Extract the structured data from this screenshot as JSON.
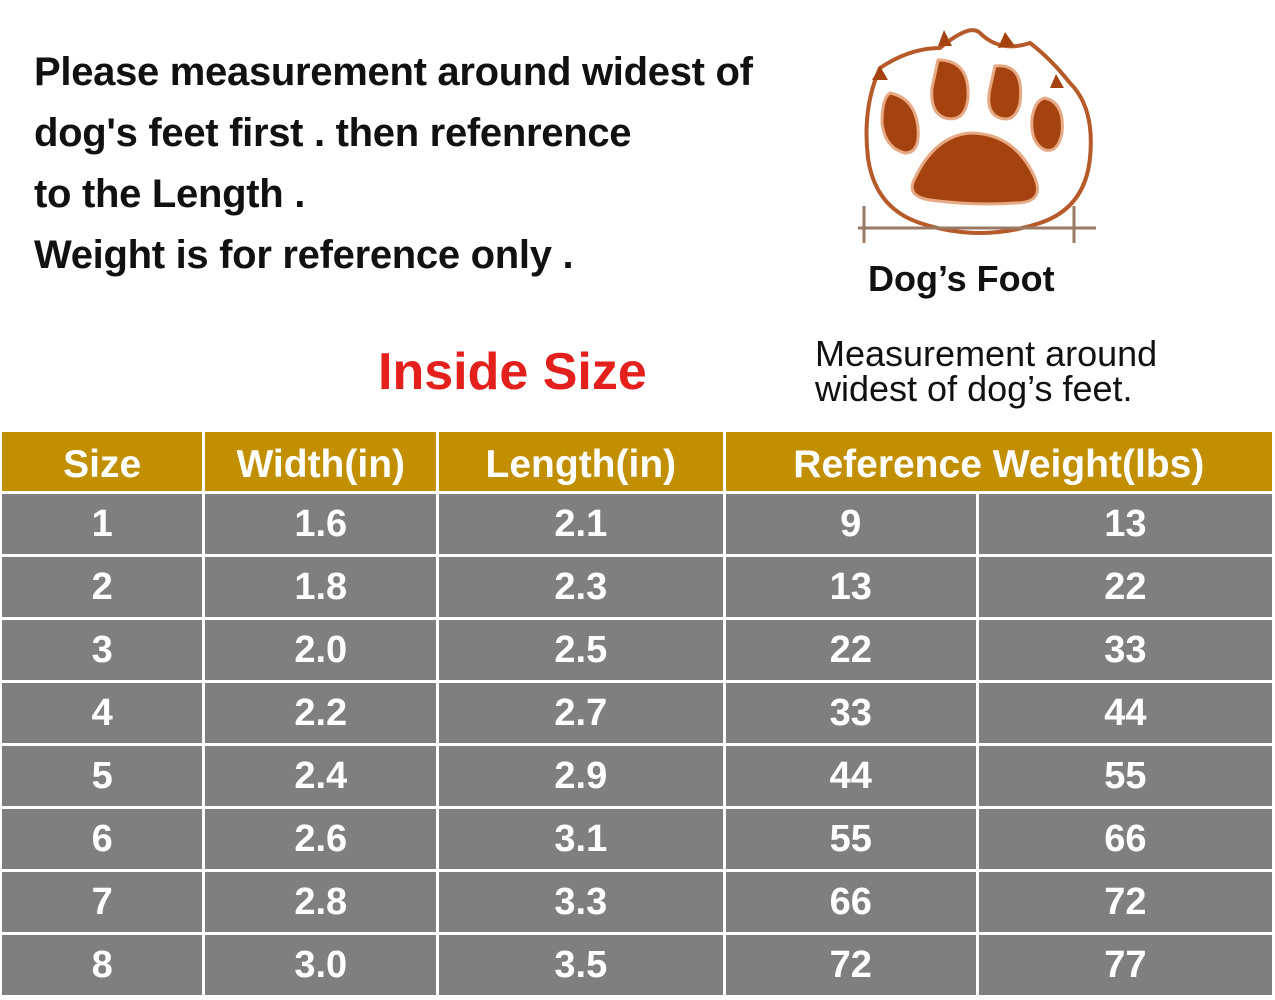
{
  "intro": {
    "lines": [
      "Please measurement around widest of",
      "dog's feet first .  then refenrence",
      "to the Length .",
      "Weight is for reference only ."
    ]
  },
  "figure": {
    "label": "Dog’s Foot",
    "icon": "paw-icon",
    "colors": {
      "pad": "#a4430f",
      "outline": "#b65a2a",
      "ruler": "#9a7a66"
    }
  },
  "table_title": "Inside Size",
  "measure_note": [
    "Measurement around",
    "widest of dog’s feet."
  ],
  "colors": {
    "header": "#c18f00",
    "cell": "#7f7f7f",
    "title": "#e3201c"
  },
  "table": {
    "headers": [
      "Size",
      "Width(in)",
      "Length(in)",
      "Reference Weight(lbs)"
    ],
    "rows": [
      [
        "1",
        "1.6",
        "2.1",
        "9",
        "13"
      ],
      [
        "2",
        "1.8",
        "2.3",
        "13",
        "22"
      ],
      [
        "3",
        "2.0",
        "2.5",
        "22",
        "33"
      ],
      [
        "4",
        "2.2",
        "2.7",
        "33",
        "44"
      ],
      [
        "5",
        "2.4",
        "2.9",
        "44",
        "55"
      ],
      [
        "6",
        "2.6",
        "3.1",
        "55",
        "66"
      ],
      [
        "7",
        "2.8",
        "3.3",
        "66",
        "72"
      ],
      [
        "8",
        "3.0",
        "3.5",
        "72",
        "77"
      ]
    ]
  }
}
